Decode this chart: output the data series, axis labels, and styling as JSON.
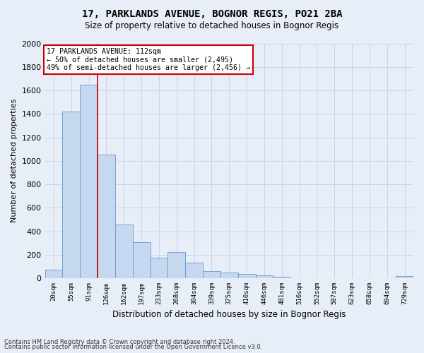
{
  "title1": "17, PARKLANDS AVENUE, BOGNOR REGIS, PO21 2BA",
  "title2": "Size of property relative to detached houses in Bognor Regis",
  "xlabel": "Distribution of detached houses by size in Bognor Regis",
  "ylabel": "Number of detached properties",
  "footnote1": "Contains HM Land Registry data © Crown copyright and database right 2024.",
  "footnote2": "Contains public sector information licensed under the Open Government Licence v3.0.",
  "bar_labels": [
    "20sqm",
    "55sqm",
    "91sqm",
    "126sqm",
    "162sqm",
    "197sqm",
    "233sqm",
    "268sqm",
    "304sqm",
    "339sqm",
    "375sqm",
    "410sqm",
    "446sqm",
    "481sqm",
    "516sqm",
    "552sqm",
    "587sqm",
    "623sqm",
    "658sqm",
    "694sqm",
    "729sqm"
  ],
  "bar_values": [
    70,
    1420,
    1650,
    1050,
    460,
    310,
    175,
    225,
    130,
    60,
    50,
    35,
    25,
    10,
    0,
    0,
    0,
    0,
    0,
    0,
    20
  ],
  "bar_color": "#c5d8f0",
  "bar_edge_color": "#6699cc",
  "grid_color": "#c8d4e8",
  "annotation_box_text": "17 PARKLANDS AVENUE: 112sqm\n← 50% of detached houses are smaller (2,495)\n49% of semi-detached houses are larger (2,456) →",
  "annotation_box_color": "#ffffff",
  "annotation_box_edge_color": "#cc0000",
  "vline_x": 2.5,
  "vline_color": "#cc0000",
  "ylim": [
    0,
    2000
  ],
  "yticks": [
    0,
    200,
    400,
    600,
    800,
    1000,
    1200,
    1400,
    1600,
    1800,
    2000
  ],
  "bg_color": "#e8eef8",
  "plot_bg_color": "#e8eef8"
}
